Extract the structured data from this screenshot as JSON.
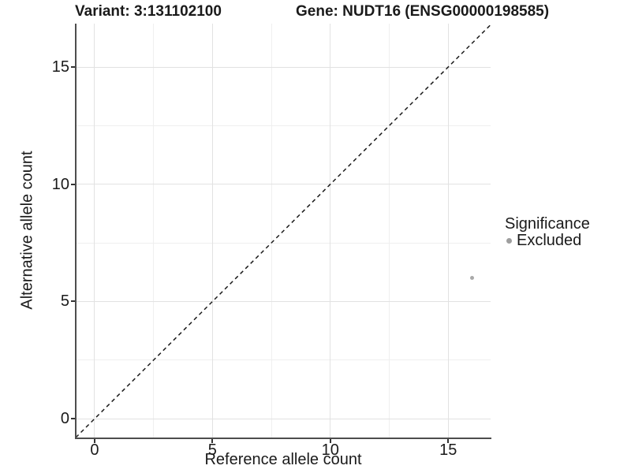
{
  "titles": {
    "variant": "Variant: 3:131102100",
    "gene": "Gene: NUDT16 (ENSG00000198585)"
  },
  "chart_data": {
    "type": "scatter",
    "xlabel": "Reference allele count",
    "ylabel": "Alternative allele count",
    "xlim": [
      -0.8,
      16.8
    ],
    "ylim": [
      -0.8,
      16.85
    ],
    "x_ticks": [
      0,
      5,
      10,
      15
    ],
    "y_ticks": [
      0,
      5,
      10,
      15
    ],
    "x_minor_gridlines": [
      2.5,
      7.5,
      12.5
    ],
    "y_minor_gridlines": [
      2.5,
      7.5,
      12.5
    ],
    "grid": true,
    "points": [
      {
        "x": 16,
        "y": 6,
        "series": "Excluded"
      }
    ],
    "identity_line": {
      "slope": 1,
      "intercept": 0,
      "style": "dashed",
      "color": "#1a1a1a"
    },
    "legend": {
      "title": "Significance",
      "position": "right",
      "items": [
        {
          "label": "Excluded",
          "color": "#a3a3a3",
          "marker": "circle"
        }
      ]
    }
  },
  "colors": {
    "point": "#a9a9a9",
    "legend_dot": "#9e9e9e",
    "axis_line": "#4d4d4d",
    "major_grid": "#e2e2e2",
    "minor_grid": "#efefef",
    "text": "#1a1a1a"
  }
}
